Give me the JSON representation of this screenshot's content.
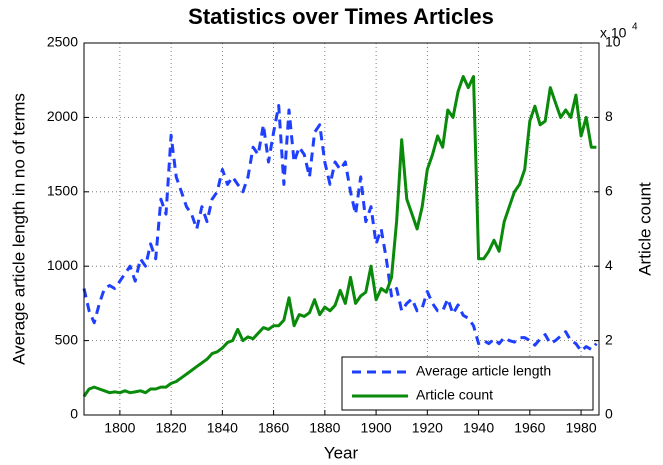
{
  "chart_data": {
    "type": "line",
    "title": "Statistics over Times Articles",
    "x_label": "Year",
    "y_label": "Average article length in no of terms",
    "y2_label": "Article count",
    "y2_multiplier": "x 10",
    "y2_multiplier_exponent": "4",
    "xlim": [
      1786,
      1987
    ],
    "xticks": [
      1800,
      1820,
      1840,
      1860,
      1880,
      1900,
      1920,
      1940,
      1960,
      1980
    ],
    "ylim": [
      0,
      2500
    ],
    "yticks": [
      0,
      500,
      1000,
      1500,
      2000,
      2500
    ],
    "y2lim": [
      0,
      100000
    ],
    "y2ticks": [
      {
        "value": 0,
        "label": "0"
      },
      {
        "value": 20000,
        "label": "2"
      },
      {
        "value": 40000,
        "label": "4"
      },
      {
        "value": 60000,
        "label": "6"
      },
      {
        "value": 80000,
        "label": "8"
      },
      {
        "value": 100000,
        "label": "10"
      }
    ],
    "grid": true,
    "legend": "lower right",
    "x": [
      1786,
      1788,
      1790,
      1792,
      1794,
      1796,
      1798,
      1800,
      1802,
      1804,
      1806,
      1808,
      1810,
      1812,
      1814,
      1816,
      1818,
      1820,
      1822,
      1824,
      1826,
      1828,
      1830,
      1832,
      1834,
      1836,
      1838,
      1840,
      1842,
      1844,
      1846,
      1848,
      1850,
      1852,
      1854,
      1856,
      1858,
      1860,
      1862,
      1864,
      1866,
      1868,
      1870,
      1872,
      1874,
      1876,
      1878,
      1880,
      1882,
      1884,
      1886,
      1888,
      1890,
      1892,
      1894,
      1896,
      1898,
      1900,
      1902,
      1904,
      1906,
      1908,
      1910,
      1912,
      1914,
      1916,
      1918,
      1920,
      1922,
      1924,
      1926,
      1928,
      1930,
      1932,
      1934,
      1936,
      1938,
      1940,
      1942,
      1944,
      1946,
      1948,
      1950,
      1952,
      1954,
      1956,
      1958,
      1960,
      1962,
      1964,
      1966,
      1968,
      1970,
      1972,
      1974,
      1976,
      1978,
      1980,
      1982,
      1984,
      1986
    ],
    "series": [
      {
        "name": "Average article length",
        "color": "#1f3fff",
        "dash": true,
        "axis": "y",
        "values": [
          850,
          700,
          620,
          750,
          850,
          870,
          850,
          900,
          950,
          1000,
          900,
          1050,
          1000,
          1150,
          1050,
          1450,
          1350,
          1880,
          1600,
          1500,
          1400,
          1350,
          1250,
          1400,
          1300,
          1450,
          1500,
          1650,
          1550,
          1600,
          1550,
          1500,
          1600,
          1800,
          1750,
          1950,
          1700,
          1900,
          2080,
          1550,
          2050,
          1700,
          1800,
          1750,
          1600,
          1900,
          1950,
          1700,
          1550,
          1700,
          1650,
          1700,
          1500,
          1350,
          1600,
          1300,
          1400,
          1150,
          1250,
          1050,
          800,
          850,
          700,
          750,
          780,
          700,
          720,
          830,
          750,
          700,
          700,
          780,
          680,
          740,
          670,
          650,
          600,
          480,
          500,
          480,
          510,
          480,
          520,
          500,
          490,
          520,
          520,
          500,
          470,
          510,
          540,
          480,
          500,
          530,
          560,
          500,
          480,
          430,
          460,
          440,
          480
        ]
      },
      {
        "name": "Article count",
        "color": "#0a8a0a",
        "dash": false,
        "axis": "y2",
        "values": [
          5000,
          7000,
          7500,
          7000,
          6500,
          6000,
          6200,
          6000,
          6500,
          6000,
          6200,
          6500,
          6000,
          7000,
          7000,
          7500,
          7500,
          8500,
          9000,
          10000,
          11000,
          12000,
          13000,
          14000,
          15000,
          16500,
          17000,
          18000,
          19500,
          20000,
          23000,
          20000,
          21000,
          20500,
          22000,
          23500,
          23000,
          24000,
          24000,
          25500,
          31500,
          24000,
          27000,
          26500,
          27500,
          31000,
          27000,
          29000,
          28000,
          29500,
          33500,
          30000,
          37000,
          30000,
          32000,
          33000,
          40000,
          31000,
          34000,
          33000,
          37000,
          52000,
          74000,
          58000,
          54000,
          50000,
          56000,
          66000,
          70000,
          75000,
          72000,
          82000,
          80000,
          87000,
          91000,
          88000,
          91000,
          42000,
          42000,
          44000,
          47000,
          44000,
          52000,
          56000,
          60000,
          62000,
          66000,
          79000,
          83000,
          78000,
          79000,
          88000,
          84000,
          80000,
          82000,
          80000,
          86000,
          75000,
          80000,
          72000,
          72000
        ]
      }
    ]
  }
}
